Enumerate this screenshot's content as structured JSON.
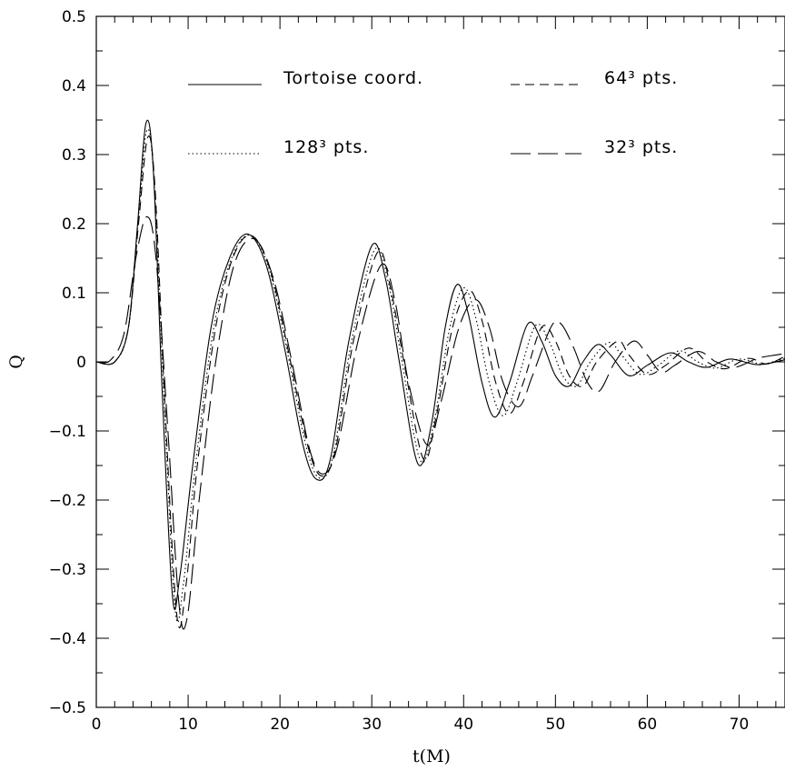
{
  "chart_data": {
    "type": "line",
    "title": "",
    "xlabel": "t(M)",
    "ylabel": "Q",
    "xlim": [
      0,
      75
    ],
    "ylim": [
      -0.5,
      0.5
    ],
    "x_ticks": [
      0,
      10,
      20,
      30,
      40,
      50,
      60,
      70
    ],
    "x_tick_labels": [
      "0",
      "10",
      "20",
      "30",
      "40",
      "50",
      "60",
      "70"
    ],
    "y_ticks": [
      -0.5,
      -0.4,
      -0.3,
      -0.2,
      -0.1,
      0,
      0.1,
      0.2,
      0.3,
      0.4,
      0.5
    ],
    "y_tick_labels": [
      "−0.5",
      "−0.4",
      "−0.3",
      "−0.2",
      "−0.1",
      "0",
      "0.1",
      "0.2",
      "0.3",
      "0.4",
      "0.5"
    ],
    "grid": false,
    "legend_position": "top",
    "series": [
      {
        "name": "Tortoise coord.",
        "dash": "solid",
        "points": [
          [
            0,
            0
          ],
          [
            2,
            0.0
          ],
          [
            3.5,
            0.05
          ],
          [
            4.5,
            0.2
          ],
          [
            5.4,
            0.345
          ],
          [
            6.2,
            0.28
          ],
          [
            7.2,
            -0.05
          ],
          [
            8.3,
            -0.34
          ],
          [
            9.1,
            -0.31
          ],
          [
            10.5,
            -0.15
          ],
          [
            12.5,
            0.05
          ],
          [
            14.5,
            0.15
          ],
          [
            16.5,
            0.185
          ],
          [
            18.5,
            0.14
          ],
          [
            20.5,
            0.02
          ],
          [
            22.5,
            -0.12
          ],
          [
            24,
            -0.17
          ],
          [
            25.5,
            -0.14
          ],
          [
            27.5,
            0.03
          ],
          [
            30,
            0.168
          ],
          [
            31.5,
            0.12
          ],
          [
            33,
            0.0
          ],
          [
            35,
            -0.147
          ],
          [
            36.5,
            -0.09
          ],
          [
            38,
            0.05
          ],
          [
            39.3,
            0.112
          ],
          [
            40.5,
            0.07
          ],
          [
            42,
            -0.03
          ],
          [
            43.4,
            -0.08
          ],
          [
            45,
            -0.03
          ],
          [
            47,
            0.055
          ],
          [
            48.5,
            0.03
          ],
          [
            50,
            -0.02
          ],
          [
            51.5,
            -0.035
          ],
          [
            53,
            0.0
          ],
          [
            54.6,
            0.025
          ],
          [
            56,
            0.01
          ],
          [
            58,
            -0.02
          ],
          [
            60,
            -0.005
          ],
          [
            62.5,
            0.013
          ],
          [
            64.5,
            0.0
          ],
          [
            66.5,
            -0.008
          ],
          [
            69,
            0.004
          ],
          [
            72,
            -0.004
          ],
          [
            75,
            0.003
          ]
        ]
      },
      {
        "name": "64³ pts.",
        "dash": "short-dash",
        "points": [
          [
            0,
            0
          ],
          [
            2,
            0.0
          ],
          [
            3.5,
            0.05
          ],
          [
            4.6,
            0.2
          ],
          [
            5.6,
            0.325
          ],
          [
            6.4,
            0.25
          ],
          [
            7.5,
            -0.07
          ],
          [
            8.8,
            -0.37
          ],
          [
            9.8,
            -0.32
          ],
          [
            11,
            -0.15
          ],
          [
            13,
            0.05
          ],
          [
            15,
            0.155
          ],
          [
            17,
            0.182
          ],
          [
            19,
            0.13
          ],
          [
            21,
            0.01
          ],
          [
            23,
            -0.12
          ],
          [
            24.5,
            -0.165
          ],
          [
            26,
            -0.13
          ],
          [
            28,
            0.03
          ],
          [
            30.6,
            0.158
          ],
          [
            32,
            0.11
          ],
          [
            33.5,
            0.0
          ],
          [
            35.6,
            -0.14
          ],
          [
            37,
            -0.08
          ],
          [
            38.8,
            0.05
          ],
          [
            40.6,
            0.103
          ],
          [
            42,
            0.06
          ],
          [
            43.5,
            -0.03
          ],
          [
            45,
            -0.075
          ],
          [
            46.5,
            -0.03
          ],
          [
            48.5,
            0.05
          ],
          [
            50,
            0.03
          ],
          [
            51.5,
            -0.02
          ],
          [
            53,
            -0.035
          ],
          [
            54.5,
            0.0
          ],
          [
            56.8,
            0.03
          ],
          [
            58,
            0.01
          ],
          [
            60,
            -0.018
          ],
          [
            62,
            -0.005
          ],
          [
            64.5,
            0.02
          ],
          [
            66.5,
            0.0
          ],
          [
            68.5,
            -0.01
          ],
          [
            71,
            0.005
          ],
          [
            73,
            -0.003
          ],
          [
            75,
            0.008
          ]
        ]
      },
      {
        "name": "128³ pts.",
        "dash": "dotted",
        "points": [
          [
            0,
            0
          ],
          [
            2,
            0.0
          ],
          [
            3.5,
            0.05
          ],
          [
            4.6,
            0.21
          ],
          [
            5.5,
            0.335
          ],
          [
            6.3,
            0.26
          ],
          [
            7.4,
            -0.06
          ],
          [
            8.6,
            -0.36
          ],
          [
            9.5,
            -0.32
          ],
          [
            10.8,
            -0.15
          ],
          [
            12.8,
            0.05
          ],
          [
            14.8,
            0.152
          ],
          [
            16.8,
            0.183
          ],
          [
            18.8,
            0.135
          ],
          [
            20.8,
            0.015
          ],
          [
            22.8,
            -0.12
          ],
          [
            24.3,
            -0.168
          ],
          [
            25.8,
            -0.135
          ],
          [
            27.8,
            0.03
          ],
          [
            30.3,
            0.162
          ],
          [
            31.8,
            0.115
          ],
          [
            33.3,
            0.0
          ],
          [
            35.3,
            -0.143
          ],
          [
            36.8,
            -0.085
          ],
          [
            38.5,
            0.05
          ],
          [
            40,
            0.107
          ],
          [
            41.3,
            0.065
          ],
          [
            42.8,
            -0.03
          ],
          [
            44.3,
            -0.078
          ],
          [
            45.8,
            -0.03
          ],
          [
            47.8,
            0.052
          ],
          [
            49.3,
            0.03
          ],
          [
            50.8,
            -0.02
          ],
          [
            52.3,
            -0.035
          ],
          [
            53.8,
            0.0
          ],
          [
            55.8,
            0.028
          ],
          [
            57.2,
            0.01
          ],
          [
            59.2,
            -0.018
          ],
          [
            61.2,
            -0.005
          ],
          [
            63.5,
            0.016
          ],
          [
            65.5,
            0.0
          ],
          [
            67.5,
            -0.009
          ],
          [
            70,
            0.004
          ],
          [
            72.5,
            -0.003
          ],
          [
            75,
            0.005
          ]
        ]
      },
      {
        "name": "32³ pts.",
        "dash": "long-dash",
        "points": [
          [
            0,
            0
          ],
          [
            1.5,
            0.002
          ],
          [
            3,
            0.04
          ],
          [
            4.3,
            0.15
          ],
          [
            5.5,
            0.21
          ],
          [
            6.5,
            0.15
          ],
          [
            7.8,
            -0.1
          ],
          [
            9,
            -0.35
          ],
          [
            9.9,
            -0.37
          ],
          [
            11.2,
            -0.2
          ],
          [
            13,
            0.0
          ],
          [
            15,
            0.14
          ],
          [
            17.2,
            0.178
          ],
          [
            19.3,
            0.12
          ],
          [
            21.3,
            0.0
          ],
          [
            23.3,
            -0.13
          ],
          [
            24.8,
            -0.162
          ],
          [
            26.3,
            -0.12
          ],
          [
            28.5,
            0.03
          ],
          [
            31,
            0.14
          ],
          [
            32.5,
            0.09
          ],
          [
            34,
            -0.03
          ],
          [
            36,
            -0.12
          ],
          [
            37.5,
            -0.06
          ],
          [
            39.5,
            0.05
          ],
          [
            41.3,
            0.09
          ],
          [
            42.8,
            0.05
          ],
          [
            44.3,
            -0.03
          ],
          [
            46,
            -0.065
          ],
          [
            47.5,
            -0.02
          ],
          [
            49.5,
            0.05
          ],
          [
            50.6,
            0.055
          ],
          [
            52,
            0.02
          ],
          [
            53.5,
            -0.03
          ],
          [
            54.8,
            -0.042
          ],
          [
            56.5,
            0.0
          ],
          [
            58.5,
            0.03
          ],
          [
            60,
            0.01
          ],
          [
            61.5,
            -0.015
          ],
          [
            63,
            -0.005
          ],
          [
            65.5,
            0.015
          ],
          [
            67.5,
            0.0
          ],
          [
            69.5,
            -0.008
          ],
          [
            72,
            0.005
          ],
          [
            74,
            0.01
          ],
          [
            75,
            0.012
          ]
        ]
      }
    ],
    "legend": [
      {
        "label": "Tortoise coord.",
        "series": 0
      },
      {
        "label": "64³ pts.",
        "series": 1
      },
      {
        "label": "128³ pts.",
        "series": 2
      },
      {
        "label": "32³ pts.",
        "series": 3
      }
    ]
  }
}
